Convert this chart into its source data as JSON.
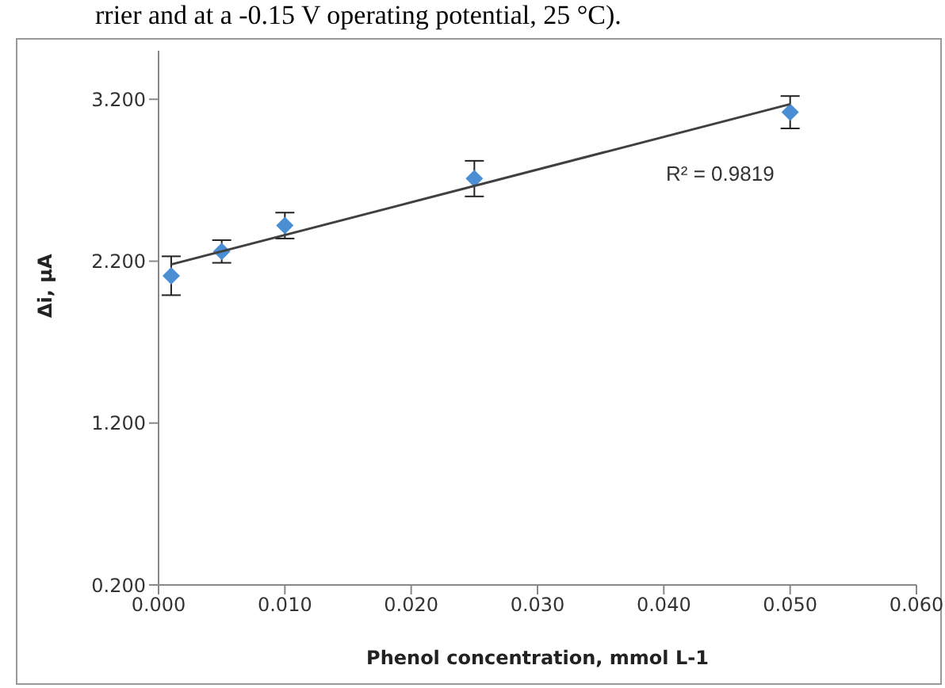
{
  "chart_data": {
    "type": "scatter",
    "xlabel": "Phenol concentration, mmol L-1",
    "ylabel": "Δi, µA",
    "xlim": [
      0,
      0.06
    ],
    "xticks": [
      {
        "value": 0,
        "label": "0.000"
      },
      {
        "value": 0.01,
        "label": "0.010"
      },
      {
        "value": 0.02,
        "label": "0.020"
      },
      {
        "value": 0.03,
        "label": "0.030"
      },
      {
        "value": 0.04,
        "label": "0.040"
      },
      {
        "value": 0.05,
        "label": "0.050"
      },
      {
        "value": 0.06,
        "label": "0.060"
      }
    ],
    "ylim": [
      0.2,
      3.5
    ],
    "yticks": [
      {
        "value": 0.2,
        "label": "0.200"
      },
      {
        "value": 1.2,
        "label": "1.200"
      },
      {
        "value": 2.2,
        "label": "2.200"
      },
      {
        "value": 3.2,
        "label": "3.200"
      }
    ],
    "marker": "diamond",
    "series": [
      {
        "color": "#4a8fd4",
        "x": [
          0.001,
          0.005,
          0.01,
          0.025,
          0.05
        ],
        "values": [
          2.11,
          2.26,
          2.42,
          2.71,
          3.12
        ],
        "errors": [
          0.12,
          0.07,
          0.08,
          0.11,
          0.1
        ]
      },
      {
        "type": "line",
        "color": "#404040",
        "x": [
          0.001,
          0.05
        ],
        "values": [
          2.18,
          3.17
        ],
        "marker": "none"
      }
    ],
    "annotations": [
      "rrier and at a -0.15 V operating potential, 25 °C).",
      "R² = 0.9819"
    ]
  }
}
